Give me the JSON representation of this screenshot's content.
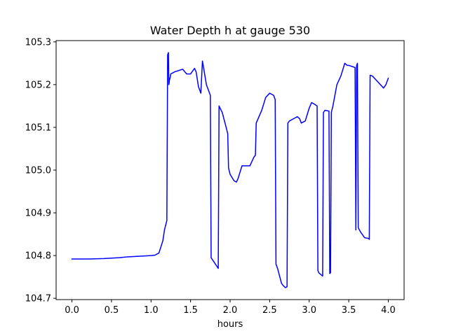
{
  "chart_data": {
    "type": "line",
    "title": "Water Depth h at gauge 530",
    "xlabel": "hours",
    "ylabel": "",
    "xlim": [
      -0.2,
      4.2
    ],
    "ylim": [
      104.697,
      105.303
    ],
    "xticks": [
      0.0,
      0.5,
      1.0,
      1.5,
      2.0,
      2.5,
      3.0,
      3.5,
      4.0
    ],
    "xtick_labels": [
      "0.0",
      "0.5",
      "1.0",
      "1.5",
      "2.0",
      "2.5",
      "3.0",
      "3.5",
      "4.0"
    ],
    "yticks": [
      104.7,
      104.8,
      104.9,
      105.0,
      105.1,
      105.2,
      105.3
    ],
    "ytick_labels": [
      "104.7",
      "104.8",
      "104.9",
      "105.0",
      "105.1",
      "105.2",
      "105.3"
    ],
    "grid": false,
    "legend": "none",
    "series": [
      {
        "color": "#0000ff",
        "x": [
          0.0,
          0.2,
          0.4,
          0.6,
          0.7,
          0.8,
          0.9,
          1.0,
          1.05,
          1.1,
          1.15,
          1.17,
          1.2,
          1.21,
          1.22,
          1.225,
          1.23,
          1.232,
          1.24,
          1.25,
          1.3,
          1.4,
          1.45,
          1.5,
          1.55,
          1.57,
          1.6,
          1.63,
          1.65,
          1.66,
          1.7,
          1.75,
          1.76,
          1.85,
          1.86,
          1.9,
          1.95,
          1.97,
          1.98,
          2.0,
          2.05,
          2.08,
          2.1,
          2.15,
          2.2,
          2.25,
          2.3,
          2.32,
          2.33,
          2.4,
          2.45,
          2.5,
          2.55,
          2.57,
          2.58,
          2.6,
          2.65,
          2.67,
          2.7,
          2.72,
          2.73,
          2.75,
          2.8,
          2.85,
          2.88,
          2.9,
          2.95,
          3.0,
          3.03,
          3.06,
          3.1,
          3.11,
          3.12,
          3.17,
          3.18,
          3.2,
          3.25,
          3.26,
          3.27,
          3.28,
          3.3,
          3.35,
          3.4,
          3.45,
          3.48,
          3.5,
          3.55,
          3.58,
          3.59,
          3.6,
          3.61,
          3.62,
          3.65,
          3.7,
          3.75,
          3.76,
          3.77,
          3.8,
          3.85,
          3.9,
          3.94,
          3.97,
          4.0
        ],
        "values": [
          104.792,
          104.792,
          104.793,
          104.795,
          104.797,
          104.798,
          104.799,
          104.8,
          104.801,
          104.806,
          104.835,
          104.86,
          104.882,
          105.27,
          105.275,
          105.2,
          105.205,
          105.21,
          105.215,
          105.225,
          105.23,
          105.236,
          105.225,
          105.225,
          105.238,
          105.23,
          105.195,
          105.18,
          105.255,
          105.245,
          105.2,
          105.175,
          104.795,
          104.77,
          105.15,
          105.135,
          105.1,
          105.085,
          105.005,
          104.99,
          104.975,
          104.972,
          104.98,
          105.01,
          105.01,
          105.01,
          105.03,
          105.035,
          105.11,
          105.14,
          105.17,
          105.18,
          105.175,
          105.165,
          104.78,
          104.77,
          104.735,
          104.73,
          104.725,
          104.727,
          105.11,
          105.115,
          105.12,
          105.125,
          105.12,
          105.11,
          105.115,
          105.145,
          105.158,
          105.155,
          105.15,
          104.765,
          104.76,
          104.752,
          105.135,
          105.14,
          105.138,
          104.758,
          104.76,
          105.135,
          105.15,
          105.2,
          105.22,
          105.25,
          105.245,
          105.245,
          105.242,
          105.24,
          104.86,
          105.245,
          105.25,
          104.865,
          104.855,
          104.842,
          104.84,
          104.838,
          105.222,
          105.22,
          105.21,
          105.2,
          105.192,
          105.2,
          105.215
        ]
      }
    ]
  }
}
